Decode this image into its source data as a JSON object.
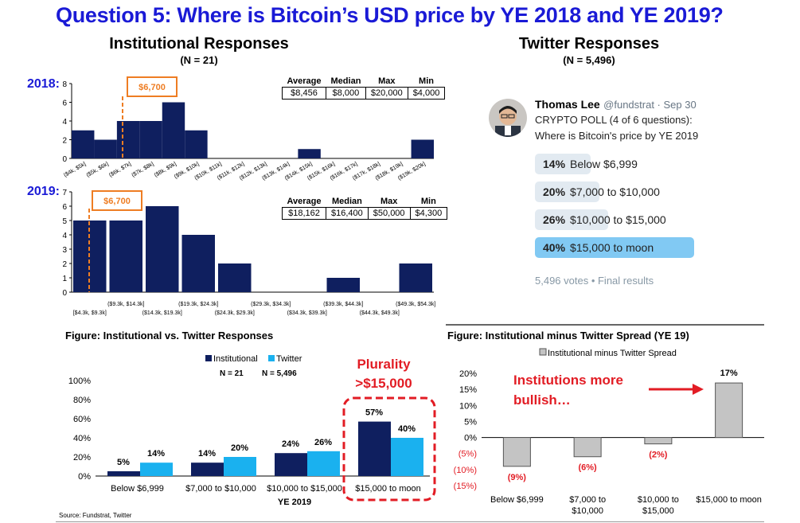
{
  "title": "Question 5: Where is Bitcoin’s USD price by YE 2018 and YE 2019?",
  "institutional": {
    "title": "Institutional Responses",
    "n_label": "(N = 21)"
  },
  "twitter": {
    "title": "Twitter Responses",
    "n_label": "(N = 5,496)",
    "user_name": "Thomas Lee",
    "user_handle": "@fundstrat · Sep 30",
    "tweet_line1": "CRYPTO POLL (4 of 6 questions):",
    "tweet_line2": "Where is Bitcoin's price by YE 2019",
    "options": [
      {
        "pct": "14%",
        "label": "Below $6,999",
        "value": 14,
        "leading": false
      },
      {
        "pct": "20%",
        "label": "$7,000 to $10,000",
        "value": 20,
        "leading": false
      },
      {
        "pct": "26%",
        "label": "$10,000 to $15,000",
        "value": 26,
        "leading": false
      },
      {
        "pct": "40%",
        "label": "$15,000 to moon",
        "value": 40,
        "leading": true
      }
    ],
    "footer": "5,496 votes • Final results"
  },
  "stats_headers": [
    "Average",
    "Median",
    "Max",
    "Min"
  ],
  "stats_2018": [
    "$8,456",
    "$8,000",
    "$20,000",
    "$4,000"
  ],
  "stats_2019": [
    "$18,162",
    "$16,400",
    "$50,000",
    "$4,300"
  ],
  "year_labels": {
    "y2018": "2018:",
    "y2019": "2019:"
  },
  "source": "Source: Fundstrat, Twitter",
  "colors": {
    "navy": "#0f1f5f",
    "sky": "#1ab1ef",
    "orange": "#ee7d23",
    "red": "#e21c24",
    "gray": "#c4c4c4",
    "poll_light": "#e2eaf1",
    "poll_lead": "#81c9f3",
    "title_blue": "#1a1ad6"
  },
  "chart_data": [
    {
      "id": "hist2018",
      "type": "bar",
      "title": "2018",
      "categories": [
        "($4k, $5k]",
        "($5k, $6k]",
        "($6k, $7k]",
        "($7k, $8k]",
        "($8k, $9k]",
        "($9k, $10k]",
        "($10k, $11k]",
        "($11k, $12k]",
        "($12k, $13k]",
        "($13k, $14k]",
        "($14k, $15k]",
        "($15k, $16k]",
        "($16k, $17k]",
        "($17k, $18k]",
        "($18k, $19k]",
        "($19k, $20k]"
      ],
      "values": [
        3,
        2,
        4,
        4,
        6,
        3,
        0,
        0,
        0,
        0,
        1,
        0,
        0,
        0,
        0,
        2
      ],
      "yticks": [
        0,
        2,
        4,
        6,
        8
      ],
      "ylim": [
        0,
        8
      ],
      "marker_label": "$6,700",
      "marker_value": 6700
    },
    {
      "id": "hist2019",
      "type": "bar",
      "title": "2019",
      "categories": [
        "[$4.3k, $9.3k]",
        "($9.3k, $14.3k]",
        "($14.3k, $19.3k]",
        "($19.3k, $24.3k]",
        "($24.3k, $29.3k]",
        "($29.3k, $34.3k]",
        "($34.3k, $39.3k]",
        "($39.3k, $44.3k]",
        "($44.3k, $49.3k]",
        "($49.3k, $54.3k]"
      ],
      "values": [
        5,
        5,
        6,
        4,
        2,
        0,
        0,
        1,
        0,
        2
      ],
      "yticks": [
        0,
        1,
        2,
        3,
        4,
        5,
        6,
        7
      ],
      "ylim": [
        0,
        7
      ],
      "marker_label": "$6,700",
      "marker_value": 6700
    },
    {
      "id": "versus",
      "type": "bar",
      "title": "Figure: Institutional vs. Twitter Responses",
      "xlabel": "YE 2019",
      "categories": [
        "Below $6,999",
        "$7,000 to $10,000",
        "$10,000 to $15,000",
        "$15,000 to moon"
      ],
      "series": [
        {
          "name": "Institutional",
          "n": "N = 21",
          "values": [
            5,
            14,
            24,
            57
          ],
          "labels": [
            "5%",
            "14%",
            "24%",
            "57%"
          ]
        },
        {
          "name": "Twitter",
          "n": "N = 5,496",
          "values": [
            14,
            20,
            26,
            40
          ],
          "labels": [
            "14%",
            "20%",
            "26%",
            "40%"
          ]
        }
      ],
      "yticks": [
        "0%",
        "20%",
        "40%",
        "60%",
        "80%",
        "100%"
      ],
      "ylim": [
        0,
        100
      ],
      "annotation_line1": "Plurality",
      "annotation_line2": ">$15,000"
    },
    {
      "id": "spread",
      "type": "bar",
      "title": "Figure: Institutional minus Twitter Spread (YE 19)",
      "legend": "Institutional minus Twitter Spread",
      "categories": [
        [
          "Below $6,999"
        ],
        [
          "$7,000 to",
          "$10,000"
        ],
        [
          "$10,000 to",
          "$15,000"
        ],
        [
          "$15,000 to moon"
        ]
      ],
      "values": [
        -9,
        -6,
        -2,
        17
      ],
      "labels": [
        "(9%)",
        "(6%)",
        "(2%)",
        "17%"
      ],
      "yticks": [
        "(15%)",
        "(10%)",
        "(5%)",
        "0%",
        "5%",
        "10%",
        "15%",
        "20%"
      ],
      "ylim": [
        -15,
        20
      ],
      "annotation_line1": "Institutions more",
      "annotation_line2": "bullish…"
    }
  ]
}
